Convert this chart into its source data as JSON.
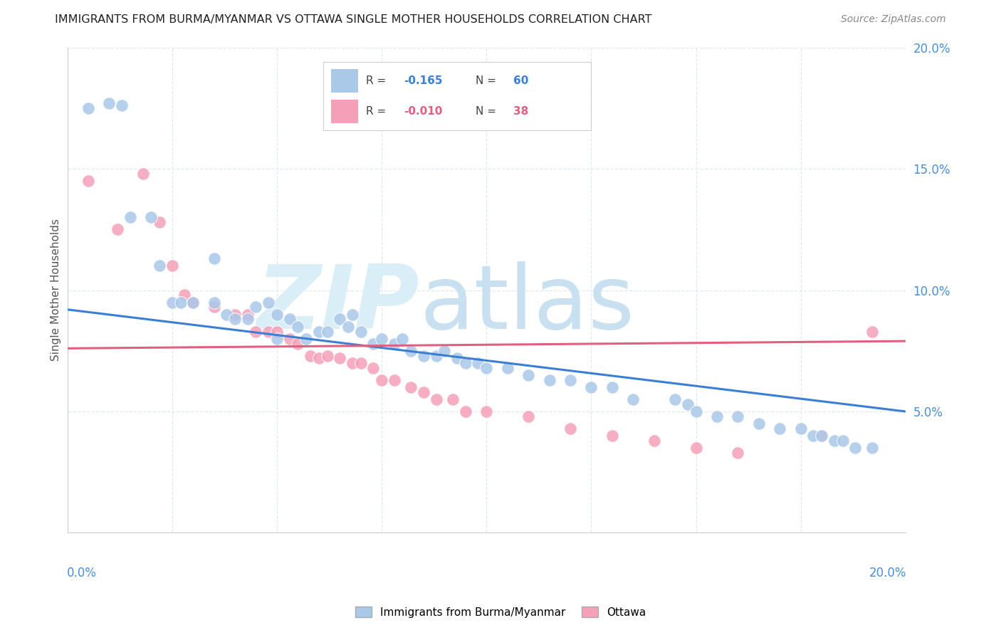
{
  "title": "IMMIGRANTS FROM BURMA/MYANMAR VS OTTAWA SINGLE MOTHER HOUSEHOLDS CORRELATION CHART",
  "source": "Source: ZipAtlas.com",
  "ylabel": "Single Mother Households",
  "xmin": 0.0,
  "xmax": 0.2,
  "ymin": 0.0,
  "ymax": 0.2,
  "yticks": [
    0.05,
    0.1,
    0.15,
    0.2
  ],
  "ytick_labels": [
    "5.0%",
    "10.0%",
    "15.0%",
    "20.0%"
  ],
  "blue_color": "#aac8e8",
  "pink_color": "#f4a0b8",
  "blue_line_color": "#3a7fd4",
  "pink_line_color": "#e06080",
  "right_axis_color": "#4a8fd4",
  "watermark_text": "ZIPatlas",
  "watermark_color": "#daeef8",
  "blue_r": "-0.165",
  "blue_n": "60",
  "pink_r": "-0.010",
  "pink_n": "38",
  "blue_scatter_x": [
    0.005,
    0.01,
    0.013,
    0.015,
    0.02,
    0.022,
    0.025,
    0.027,
    0.03,
    0.035,
    0.035,
    0.038,
    0.04,
    0.043,
    0.045,
    0.048,
    0.05,
    0.05,
    0.053,
    0.055,
    0.057,
    0.06,
    0.062,
    0.065,
    0.067,
    0.068,
    0.07,
    0.073,
    0.075,
    0.078,
    0.08,
    0.082,
    0.085,
    0.088,
    0.09,
    0.093,
    0.095,
    0.098,
    0.1,
    0.105,
    0.11,
    0.115,
    0.12,
    0.125,
    0.13,
    0.135,
    0.145,
    0.148,
    0.15,
    0.155,
    0.16,
    0.165,
    0.17,
    0.175,
    0.178,
    0.18,
    0.183,
    0.185,
    0.188,
    0.192
  ],
  "blue_scatter_y": [
    0.175,
    0.177,
    0.176,
    0.13,
    0.13,
    0.11,
    0.095,
    0.095,
    0.095,
    0.113,
    0.095,
    0.09,
    0.088,
    0.088,
    0.093,
    0.095,
    0.08,
    0.09,
    0.088,
    0.085,
    0.08,
    0.083,
    0.083,
    0.088,
    0.085,
    0.09,
    0.083,
    0.078,
    0.08,
    0.078,
    0.08,
    0.075,
    0.073,
    0.073,
    0.075,
    0.072,
    0.07,
    0.07,
    0.068,
    0.068,
    0.065,
    0.063,
    0.063,
    0.06,
    0.06,
    0.055,
    0.055,
    0.053,
    0.05,
    0.048,
    0.048,
    0.045,
    0.043,
    0.043,
    0.04,
    0.04,
    0.038,
    0.038,
    0.035,
    0.035
  ],
  "pink_scatter_x": [
    0.005,
    0.012,
    0.018,
    0.022,
    0.025,
    0.028,
    0.03,
    0.035,
    0.04,
    0.043,
    0.045,
    0.048,
    0.05,
    0.053,
    0.055,
    0.058,
    0.06,
    0.062,
    0.065,
    0.068,
    0.07,
    0.073,
    0.075,
    0.078,
    0.082,
    0.085,
    0.088,
    0.092,
    0.095,
    0.1,
    0.11,
    0.12,
    0.13,
    0.14,
    0.15,
    0.16,
    0.18,
    0.192
  ],
  "pink_scatter_y": [
    0.145,
    0.125,
    0.148,
    0.128,
    0.11,
    0.098,
    0.095,
    0.093,
    0.09,
    0.09,
    0.083,
    0.083,
    0.083,
    0.08,
    0.078,
    0.073,
    0.072,
    0.073,
    0.072,
    0.07,
    0.07,
    0.068,
    0.063,
    0.063,
    0.06,
    0.058,
    0.055,
    0.055,
    0.05,
    0.05,
    0.048,
    0.043,
    0.04,
    0.038,
    0.035,
    0.033,
    0.04,
    0.083
  ],
  "blue_line_x": [
    0.0,
    0.2
  ],
  "blue_line_y": [
    0.092,
    0.05
  ],
  "pink_line_x": [
    0.0,
    0.2
  ],
  "pink_line_y": [
    0.076,
    0.079
  ],
  "grid_color": "#e0e8f0",
  "background_color": "#ffffff",
  "xtick_left": "0.0%",
  "xtick_right": "20.0%"
}
